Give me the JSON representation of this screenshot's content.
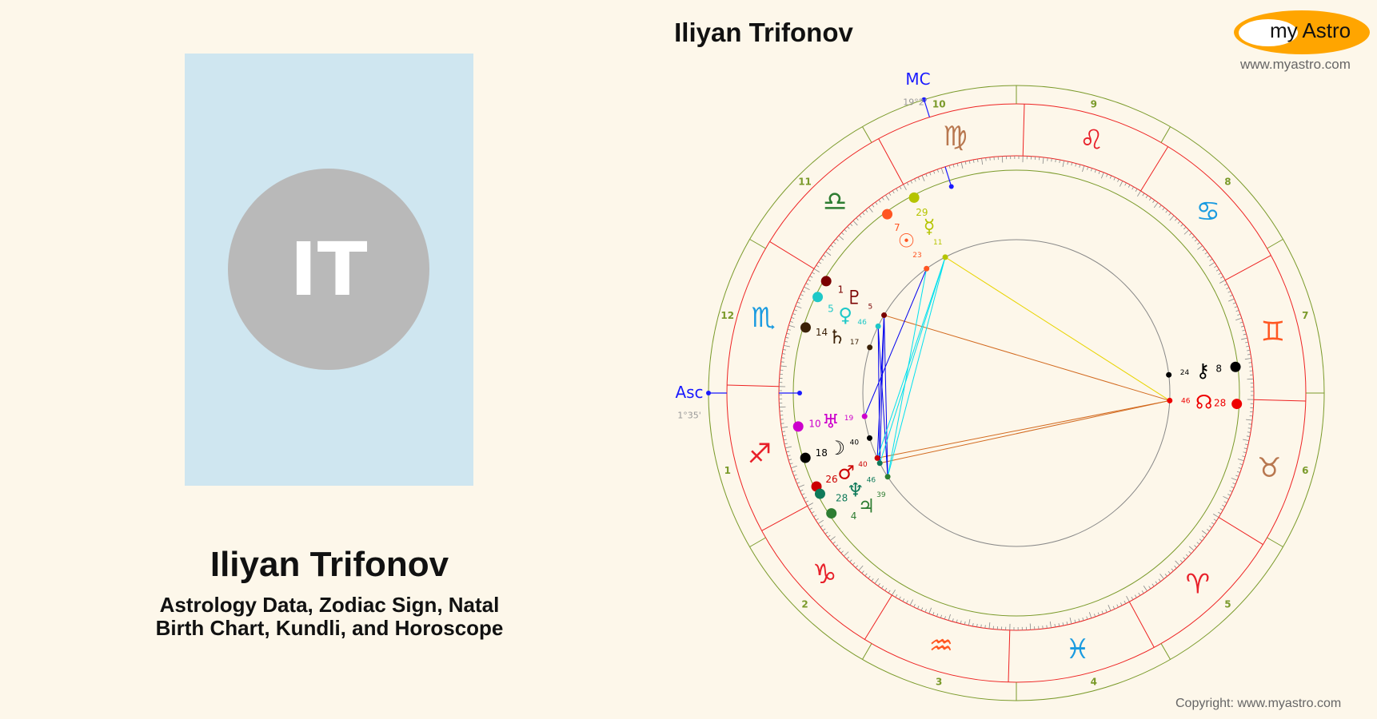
{
  "header": {
    "title": "Iliyan Trifonov"
  },
  "profile": {
    "initials": "IT",
    "name": "Iliyan Trifonov",
    "subtitle_line1": "Astrology Data, Zodiac Sign, Natal",
    "subtitle_line2": "Birth Chart, Kundli, and Horoscope"
  },
  "logo": {
    "text": "my Astro",
    "url": "www.myastro.com"
  },
  "copyright": "Copyright: www.myastro.com",
  "chart": {
    "ascendant": {
      "label": "Asc",
      "sign": "Sagittarius",
      "deg": 1,
      "min": 35,
      "text": "1°35'"
    },
    "mc": {
      "label": "MC",
      "text": "19°2'",
      "sign": "Virgo",
      "deg": 19,
      "min": 2
    },
    "houses": [
      "1",
      "2",
      "3",
      "4",
      "5",
      "6",
      "7",
      "8",
      "9",
      "10",
      "11",
      "12"
    ],
    "signs": [
      {
        "name": "Aries",
        "glyph": "♈︎",
        "color": "#e8202a"
      },
      {
        "name": "Taurus",
        "glyph": "♉︎",
        "color": "#b8774f"
      },
      {
        "name": "Gemini",
        "glyph": "♊︎",
        "color": "#ff5722"
      },
      {
        "name": "Cancer",
        "glyph": "♋︎",
        "color": "#1a9be0"
      },
      {
        "name": "Leo",
        "glyph": "♌︎",
        "color": "#e8202a"
      },
      {
        "name": "Virgo",
        "glyph": "♍︎",
        "color": "#b8774f"
      },
      {
        "name": "Libra",
        "glyph": "♎︎",
        "color": "#2e7d32"
      },
      {
        "name": "Scorpio",
        "glyph": "♏︎",
        "color": "#1a9be0"
      },
      {
        "name": "Sagittarius",
        "glyph": "♐︎",
        "color": "#e8202a"
      },
      {
        "name": "Capricorn",
        "glyph": "♑︎",
        "color": "#e8202a"
      },
      {
        "name": "Aquarius",
        "glyph": "♒︎",
        "color": "#ff5722"
      },
      {
        "name": "Pisces",
        "glyph": "♓︎",
        "color": "#1a9be0"
      }
    ],
    "planets": [
      {
        "name": "Pluto",
        "glyph": "♇",
        "sign": "Scorpio",
        "deg": "1",
        "min": "5",
        "color": "#7a0000"
      },
      {
        "name": "Venus",
        "glyph": "♀",
        "sign": "Scorpio",
        "deg": "5",
        "min": "46",
        "color": "#1ec8c8"
      },
      {
        "name": "Saturn",
        "glyph": "♄",
        "sign": "Scorpio",
        "deg": "14",
        "min": "17",
        "color": "#3b2107"
      },
      {
        "name": "Uranus",
        "glyph": "♅",
        "sign": "Sagittarius",
        "deg": "10",
        "min": "19",
        "color": "#cc00cc"
      },
      {
        "name": "Moon",
        "glyph": "☽",
        "sign": "Sagittarius",
        "deg": "18",
        "min": "40",
        "color": "#000000"
      },
      {
        "name": "Mars",
        "glyph": "♂",
        "sign": "Sagittarius",
        "deg": "26",
        "min": "40",
        "color": "#cc0000"
      },
      {
        "name": "Neptune",
        "glyph": "♆",
        "sign": "Sagittarius",
        "deg": "28",
        "min": "46",
        "color": "#0f7a5a"
      },
      {
        "name": "Jupiter",
        "glyph": "♃",
        "sign": "Capricorn",
        "deg": "4",
        "min": "39",
        "color": "#2e7d32"
      },
      {
        "name": "Sun",
        "glyph": "☉",
        "sign": "Libra",
        "deg": "7",
        "min": "23",
        "color": "#ff5522"
      },
      {
        "name": "Mercury",
        "glyph": "☿",
        "sign": "Virgo",
        "deg": "29",
        "min": "11",
        "color": "#b5c400"
      },
      {
        "name": "Chiron",
        "glyph": "⚷",
        "sign": "Gemini",
        "deg": "8",
        "min": "24",
        "color": "#000000"
      },
      {
        "name": "North Node",
        "glyph": "☊",
        "sign": "Taurus",
        "deg": "28",
        "min": "46",
        "color": "#ee0000"
      }
    ],
    "aspects": [
      {
        "a": "Mercury",
        "b": "North Node",
        "type": "trine"
      },
      {
        "a": "Pluto",
        "b": "North Node",
        "type": "quincunx"
      },
      {
        "a": "Mars",
        "b": "North Node",
        "type": "quincunx"
      },
      {
        "a": "Neptune",
        "b": "North Node",
        "type": "quincunx"
      },
      {
        "a": "Sun",
        "b": "Uranus",
        "type": "sextile"
      },
      {
        "a": "Pluto",
        "b": "Mars",
        "type": "sextile"
      },
      {
        "a": "Pluto",
        "b": "Neptune",
        "type": "sextile"
      },
      {
        "a": "Pluto",
        "b": "Jupiter",
        "type": "sextile"
      },
      {
        "a": "Venus",
        "b": "Neptune",
        "type": "sextile"
      },
      {
        "a": "Venus",
        "b": "Jupiter",
        "type": "sextile"
      },
      {
        "a": "Mercury",
        "b": "Mars",
        "type": "square"
      },
      {
        "a": "Mercury",
        "b": "Neptune",
        "type": "square"
      },
      {
        "a": "Mercury",
        "b": "Jupiter",
        "type": "square"
      },
      {
        "a": "Sun",
        "b": "Jupiter",
        "type": "square"
      }
    ],
    "colors": {
      "house_ring": "#7a9a2a",
      "sign_ring": "#ee2222",
      "angles": "#1a1aff",
      "trine": "#e8d400",
      "quincunx": "#d2691e",
      "sextile": "#0000ee",
      "square": "#00e0ee"
    }
  }
}
